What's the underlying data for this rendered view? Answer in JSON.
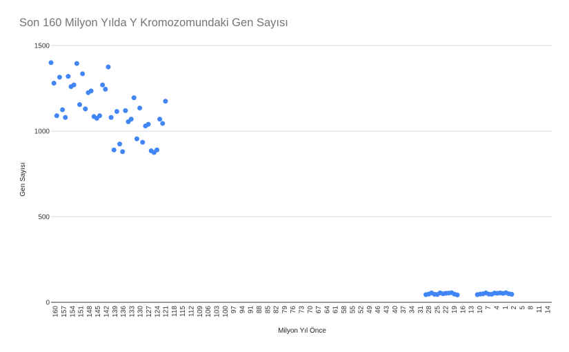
{
  "chart_data": {
    "type": "scatter",
    "title": "Son 160 Milyon Yılda Y Kromozomundaki Gen Sayısı",
    "xlabel": "Milyon Yıl Önce",
    "ylabel": "Gen Sayısı",
    "ylim": [
      0,
      1500
    ],
    "yticks": [
      0,
      500,
      1000,
      1500
    ],
    "grid": "horizontal",
    "legend": "none",
    "point_color": "#4285f4",
    "x_categories": [
      "160",
      "157",
      "154",
      "151",
      "148",
      "145",
      "142",
      "139",
      "136",
      "133",
      "130",
      "127",
      "124",
      "121",
      "118",
      "115",
      "112",
      "109",
      "106",
      "103",
      "100",
      "97",
      "94",
      "91",
      "88",
      "85",
      "82",
      "79",
      "76",
      "73",
      "70",
      "67",
      "64",
      "61",
      "58",
      "55",
      "52",
      "49",
      "46",
      "43",
      "40",
      "37",
      "34",
      "31",
      "28",
      "25",
      "22",
      "19",
      "16",
      "13",
      "10",
      "7",
      "4",
      "1",
      "2",
      "5",
      "8",
      "11",
      "14"
    ],
    "points": [
      {
        "x": 160,
        "y": 1400
      },
      {
        "x": 159,
        "y": 1280
      },
      {
        "x": 158,
        "y": 1090
      },
      {
        "x": 157,
        "y": 1315
      },
      {
        "x": 156,
        "y": 1125
      },
      {
        "x": 155,
        "y": 1080
      },
      {
        "x": 154,
        "y": 1320
      },
      {
        "x": 153,
        "y": 1260
      },
      {
        "x": 152,
        "y": 1270
      },
      {
        "x": 151,
        "y": 1395
      },
      {
        "x": 150,
        "y": 1155
      },
      {
        "x": 149,
        "y": 1335
      },
      {
        "x": 148,
        "y": 1130
      },
      {
        "x": 147,
        "y": 1225
      },
      {
        "x": 146,
        "y": 1235
      },
      {
        "x": 145,
        "y": 1085
      },
      {
        "x": 144,
        "y": 1075
      },
      {
        "x": 143,
        "y": 1090
      },
      {
        "x": 142,
        "y": 1270
      },
      {
        "x": 141,
        "y": 1245
      },
      {
        "x": 140,
        "y": 1375
      },
      {
        "x": 139,
        "y": 1080
      },
      {
        "x": 138,
        "y": 890
      },
      {
        "x": 137,
        "y": 1115
      },
      {
        "x": 136,
        "y": 925
      },
      {
        "x": 135,
        "y": 880
      },
      {
        "x": 134,
        "y": 1120
      },
      {
        "x": 133,
        "y": 1055
      },
      {
        "x": 132,
        "y": 1070
      },
      {
        "x": 131,
        "y": 1195
      },
      {
        "x": 130,
        "y": 955
      },
      {
        "x": 129,
        "y": 1135
      },
      {
        "x": 128,
        "y": 935
      },
      {
        "x": 127,
        "y": 1030
      },
      {
        "x": 126,
        "y": 1040
      },
      {
        "x": 125,
        "y": 885
      },
      {
        "x": 124,
        "y": 875
      },
      {
        "x": 123,
        "y": 890
      },
      {
        "x": 122,
        "y": 1070
      },
      {
        "x": 121,
        "y": 1045
      },
      {
        "x": 120,
        "y": 1175
      },
      {
        "x": 29,
        "y": 45
      },
      {
        "x": 28,
        "y": 48
      },
      {
        "x": 27,
        "y": 55
      },
      {
        "x": 26,
        "y": 47
      },
      {
        "x": 25,
        "y": 46
      },
      {
        "x": 24,
        "y": 55
      },
      {
        "x": 23,
        "y": 50
      },
      {
        "x": 22,
        "y": 53
      },
      {
        "x": 21,
        "y": 54
      },
      {
        "x": 20,
        "y": 56
      },
      {
        "x": 19,
        "y": 48
      },
      {
        "x": 18,
        "y": 43
      },
      {
        "x": 11,
        "y": 45
      },
      {
        "x": 10,
        "y": 48
      },
      {
        "x": 9,
        "y": 50
      },
      {
        "x": 8,
        "y": 55
      },
      {
        "x": 7,
        "y": 48
      },
      {
        "x": 6,
        "y": 47
      },
      {
        "x": 5,
        "y": 54
      },
      {
        "x": 4,
        "y": 53
      },
      {
        "x": 3,
        "y": 55
      },
      {
        "x": 2,
        "y": 52
      },
      {
        "x": 1,
        "y": 56
      },
      {
        "x": 0,
        "y": 50
      },
      {
        "x": -1,
        "y": 47
      }
    ]
  }
}
